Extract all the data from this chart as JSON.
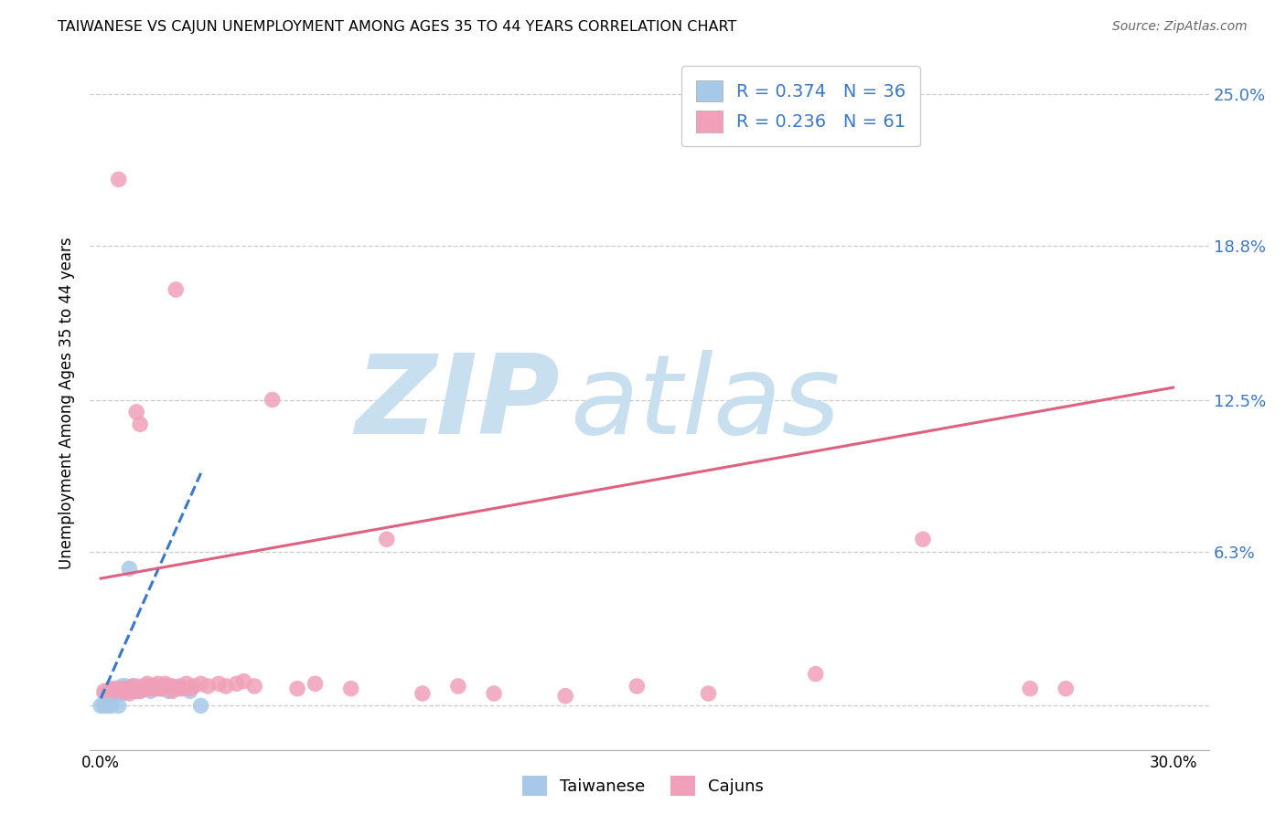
{
  "title": "TAIWANESE VS CAJUN UNEMPLOYMENT AMONG AGES 35 TO 44 YEARS CORRELATION CHART",
  "source": "Source: ZipAtlas.com",
  "ylabel": "Unemployment Among Ages 35 to 44 years",
  "xlim": [
    -0.003,
    0.31
  ],
  "ylim": [
    -0.018,
    0.265
  ],
  "ytick_positions": [
    0.0,
    0.063,
    0.125,
    0.188,
    0.25
  ],
  "ytick_labels": [
    "",
    "6.3%",
    "12.5%",
    "18.8%",
    "25.0%"
  ],
  "xtick_positions": [
    0.0,
    0.05,
    0.1,
    0.15,
    0.2,
    0.25,
    0.3
  ],
  "xtick_labels": [
    "0.0%",
    "",
    "",
    "",
    "",
    "",
    "30.0%"
  ],
  "taiwanese_R": 0.374,
  "taiwanese_N": 36,
  "cajun_R": 0.236,
  "cajun_N": 61,
  "taiwanese_color": "#a8c8e8",
  "cajun_color": "#f0a0b8",
  "taiwanese_line_color": "#3a78c9",
  "cajun_line_color": "#e06080",
  "watermark_zip": "ZIP",
  "watermark_atlas": "atlas",
  "watermark_color": "#c8dff0",
  "legend_taiwanese_label": "Taiwanese",
  "legend_cajun_label": "Cajuns",
  "taiwanese_x": [
    0.0,
    0.001,
    0.001,
    0.002,
    0.002,
    0.003,
    0.003,
    0.003,
    0.004,
    0.004,
    0.005,
    0.005,
    0.005,
    0.006,
    0.006,
    0.006,
    0.007,
    0.007,
    0.008,
    0.008,
    0.009,
    0.009,
    0.01,
    0.01,
    0.011,
    0.011,
    0.012,
    0.013,
    0.014,
    0.015,
    0.017,
    0.019,
    0.02,
    0.022,
    0.025,
    0.028
  ],
  "taiwanese_y": [
    0.0,
    0.0,
    0.005,
    0.0,
    0.006,
    0.0,
    0.005,
    0.006,
    0.005,
    0.007,
    0.0,
    0.005,
    0.007,
    0.005,
    0.006,
    0.008,
    0.006,
    0.008,
    0.056,
    0.006,
    0.007,
    0.008,
    0.006,
    0.008,
    0.006,
    0.007,
    0.007,
    0.007,
    0.006,
    0.008,
    0.007,
    0.006,
    0.007,
    0.007,
    0.006,
    0.0
  ],
  "cajun_x": [
    0.001,
    0.003,
    0.004,
    0.005,
    0.005,
    0.006,
    0.007,
    0.007,
    0.008,
    0.008,
    0.009,
    0.009,
    0.01,
    0.01,
    0.01,
    0.011,
    0.011,
    0.012,
    0.012,
    0.013,
    0.013,
    0.014,
    0.014,
    0.015,
    0.015,
    0.016,
    0.016,
    0.017,
    0.018,
    0.018,
    0.019,
    0.02,
    0.02,
    0.021,
    0.022,
    0.023,
    0.024,
    0.025,
    0.026,
    0.028,
    0.03,
    0.033,
    0.035,
    0.038,
    0.04,
    0.043,
    0.048,
    0.055,
    0.06,
    0.07,
    0.08,
    0.09,
    0.1,
    0.11,
    0.13,
    0.15,
    0.17,
    0.2,
    0.23,
    0.26,
    0.27
  ],
  "cajun_y": [
    0.006,
    0.007,
    0.006,
    0.215,
    0.007,
    0.006,
    0.006,
    0.007,
    0.005,
    0.007,
    0.006,
    0.008,
    0.006,
    0.007,
    0.12,
    0.006,
    0.115,
    0.007,
    0.008,
    0.007,
    0.009,
    0.007,
    0.008,
    0.007,
    0.008,
    0.007,
    0.009,
    0.007,
    0.008,
    0.009,
    0.008,
    0.006,
    0.008,
    0.17,
    0.008,
    0.007,
    0.009,
    0.007,
    0.008,
    0.009,
    0.008,
    0.009,
    0.008,
    0.009,
    0.01,
    0.008,
    0.125,
    0.007,
    0.009,
    0.007,
    0.068,
    0.005,
    0.008,
    0.005,
    0.004,
    0.008,
    0.005,
    0.013,
    0.068,
    0.007,
    0.007
  ],
  "tw_line_x": [
    0.0,
    0.028
  ],
  "tw_line_y_start": 0.003,
  "tw_line_y_end": 0.095,
  "cj_line_x": [
    0.0,
    0.3
  ],
  "cj_line_y_start": 0.052,
  "cj_line_y_end": 0.13
}
